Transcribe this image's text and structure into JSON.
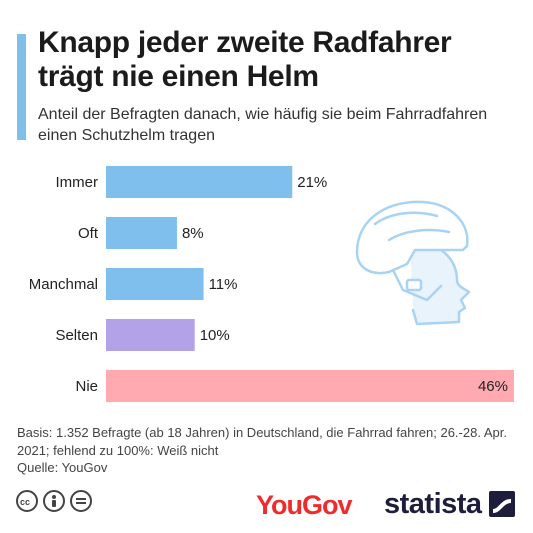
{
  "header": {
    "title": "Knapp jeder zweite Radfahrer trägt nie einen Helm",
    "subtitle": "Anteil der Befragten danach, wie häufig sie beim Fahrradfahren einen Schutzhelm tragen"
  },
  "chart_data": {
    "type": "bar",
    "orientation": "horizontal",
    "categories": [
      "Immer",
      "Oft",
      "Manchmal",
      "Selten",
      "Nie"
    ],
    "values": [
      21,
      8,
      11,
      10,
      46
    ],
    "value_labels": [
      "21%",
      "8%",
      "11%",
      "10%",
      "46%"
    ],
    "colors": [
      "#7fbfee",
      "#7fbfee",
      "#7fbfee",
      "#b3a2e8",
      "#ffaab1"
    ],
    "xlim": [
      0,
      46
    ],
    "grid": false,
    "legend": "none"
  },
  "footer": {
    "basis": "Basis: 1.352 Befragte (ab 18 Jahren) in Deutschland, die Fahrrad fahren; 26.-28. Apr. 2021; fehlend zu 100%: Weiß nicht",
    "source": "Quelle: YouGov",
    "brand_yougov": "YouGov",
    "brand_statista": "statista"
  },
  "icons": [
    "cc-icon",
    "attribution-icon",
    "no-derivatives-icon",
    "helmet-head-icon",
    "statista-logo-icon"
  ]
}
